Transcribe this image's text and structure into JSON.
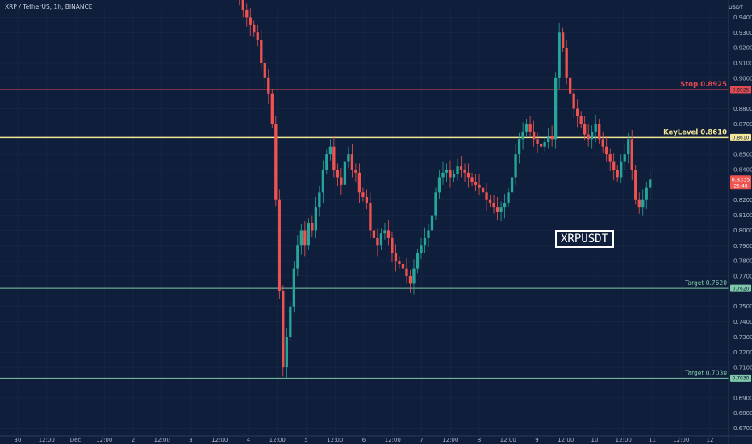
{
  "header": {
    "title": "XRP / TetherUS, 1h, BINANCE",
    "currency": "USDT"
  },
  "colors": {
    "background": "#0f1e3a",
    "grid": "#1a2b4b",
    "up": "#26a69a",
    "down": "#ef5350",
    "stop": "#e04a50",
    "keylevel": "#f5e79a",
    "target": "#7fc8a9",
    "current_price_bg": "#ef5350"
  },
  "chart_data": {
    "type": "candlestick",
    "symbol_label": "XRPUSDT",
    "ylim": [
      0.665,
      0.945
    ],
    "y_ticks": [
      "0.9400",
      "0.9300",
      "0.9200",
      "0.9100",
      "0.9000",
      "0.8800",
      "0.8700",
      "0.8500",
      "0.8400",
      "0.8200",
      "0.8100",
      "0.8000",
      "0.7900",
      "0.7800",
      "0.7700",
      "0.7500",
      "0.7400",
      "0.7300",
      "0.7200",
      "0.7100",
      "0.6900",
      "0.6800",
      "0.6700"
    ],
    "x_ticks": [
      "30",
      "12:00",
      "Dec",
      "12:00",
      "2",
      "12:00",
      "3",
      "12:00",
      "4",
      "12:00",
      "5",
      "12:00",
      "6",
      "12:00",
      "7",
      "12:00",
      "8",
      "12:00",
      "9",
      "12:00",
      "10",
      "12:00",
      "11",
      "12:00",
      "12"
    ],
    "levels": [
      {
        "name": "Stop",
        "price": 0.8925,
        "label": "Stop 0.8925",
        "tag": "0.8925"
      },
      {
        "name": "KeyLevel",
        "price": 0.861,
        "label": "KeyLevel 0.8610",
        "tag": "0.8610"
      },
      {
        "name": "Target",
        "price": 0.762,
        "label": "Target 0.7620",
        "tag": "0.7620"
      },
      {
        "name": "Target",
        "price": 0.703,
        "label": "Target 0.7030",
        "tag": "0.7030"
      }
    ],
    "current_price": {
      "price": 0.8335,
      "label": "0.8335",
      "countdown": "25:48"
    },
    "price_path": [
      [
        0.96,
        0.958,
        0.952,
        0.945,
        0.94,
        0.935,
        0.93,
        0.925,
        0.91,
        0.9,
        0.89,
        0.87,
        0.82,
        0.76,
        0.71,
        0.73,
        0.75,
        0.775,
        0.79,
        0.8,
        0.79,
        0.805,
        0.8,
        0.815,
        0.825,
        0.84,
        0.85,
        0.855,
        0.84,
        0.835,
        0.83,
        0.845,
        0.85,
        0.84,
        0.838,
        0.825,
        0.822,
        0.818,
        0.8,
        0.795,
        0.79,
        0.798,
        0.8,
        0.795,
        0.785,
        0.78,
        0.778,
        0.775,
        0.77,
        0.765,
        0.775,
        0.785,
        0.79,
        0.795,
        0.8,
        0.81,
        0.825,
        0.835,
        0.838,
        0.84,
        0.835,
        0.837,
        0.842,
        0.84,
        0.838,
        0.835,
        0.832,
        0.83,
        0.828,
        0.825,
        0.82,
        0.818,
        0.815,
        0.812,
        0.815,
        0.818,
        0.825,
        0.835,
        0.85,
        0.86,
        0.865,
        0.87,
        0.865,
        0.86,
        0.857,
        0.855,
        0.858,
        0.862,
        0.86,
        0.9,
        0.93,
        0.92,
        0.9,
        0.89,
        0.88,
        0.875,
        0.87,
        0.863,
        0.86,
        0.865,
        0.87,
        0.86,
        0.855,
        0.85,
        0.845,
        0.84,
        0.835,
        0.845,
        0.85,
        0.86,
        0.84,
        0.82,
        0.815,
        0.82,
        0.828,
        0.8335
      ]
    ]
  }
}
